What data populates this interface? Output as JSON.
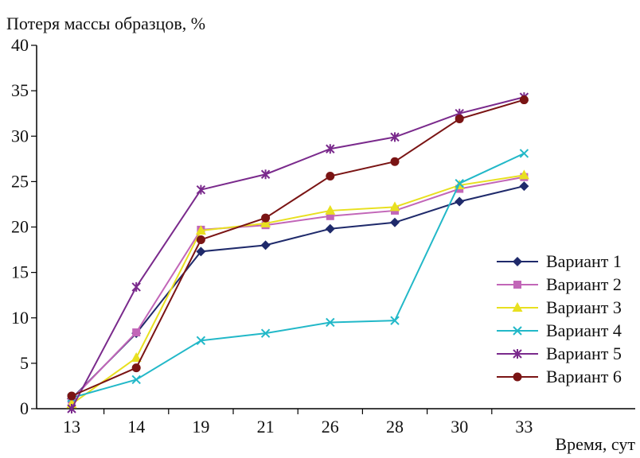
{
  "chart_data": {
    "type": "line",
    "ylabel": "Потеря массы образцов, %",
    "xlabel": "Время, сут",
    "categories": [
      "13",
      "14",
      "19",
      "21",
      "26",
      "28",
      "30",
      "33"
    ],
    "ylim": [
      0,
      40
    ],
    "yticks": [
      0,
      5,
      10,
      15,
      20,
      25,
      30,
      35,
      40
    ],
    "grid": false,
    "legend_position": "right",
    "series": [
      {
        "name": "Вариант 1",
        "color": "#1f2a6b",
        "marker": "diamond",
        "values": [
          1.1,
          8.3,
          17.3,
          18.0,
          19.8,
          20.5,
          22.8,
          24.5
        ]
      },
      {
        "name": "Вариант 2",
        "color": "#c266b8",
        "marker": "square",
        "values": [
          1.0,
          8.4,
          19.7,
          20.2,
          21.2,
          21.8,
          24.2,
          25.5
        ]
      },
      {
        "name": "Вариант 3",
        "color": "#e8e020",
        "marker": "triangle",
        "values": [
          0.5,
          5.6,
          19.6,
          20.4,
          21.8,
          22.2,
          24.6,
          25.7
        ]
      },
      {
        "name": "Вариант 4",
        "color": "#22b8c8",
        "marker": "x",
        "values": [
          1.2,
          3.2,
          7.5,
          8.3,
          9.5,
          9.7,
          24.8,
          28.1
        ]
      },
      {
        "name": "Вариант 5",
        "color": "#7a2a8c",
        "marker": "star",
        "values": [
          0.0,
          13.4,
          24.1,
          25.8,
          28.6,
          29.9,
          32.5,
          34.3
        ]
      },
      {
        "name": "Вариант 6",
        "color": "#7a1414",
        "marker": "circle",
        "values": [
          1.4,
          4.5,
          18.6,
          21.0,
          25.6,
          27.2,
          31.9,
          34.0
        ]
      }
    ]
  }
}
